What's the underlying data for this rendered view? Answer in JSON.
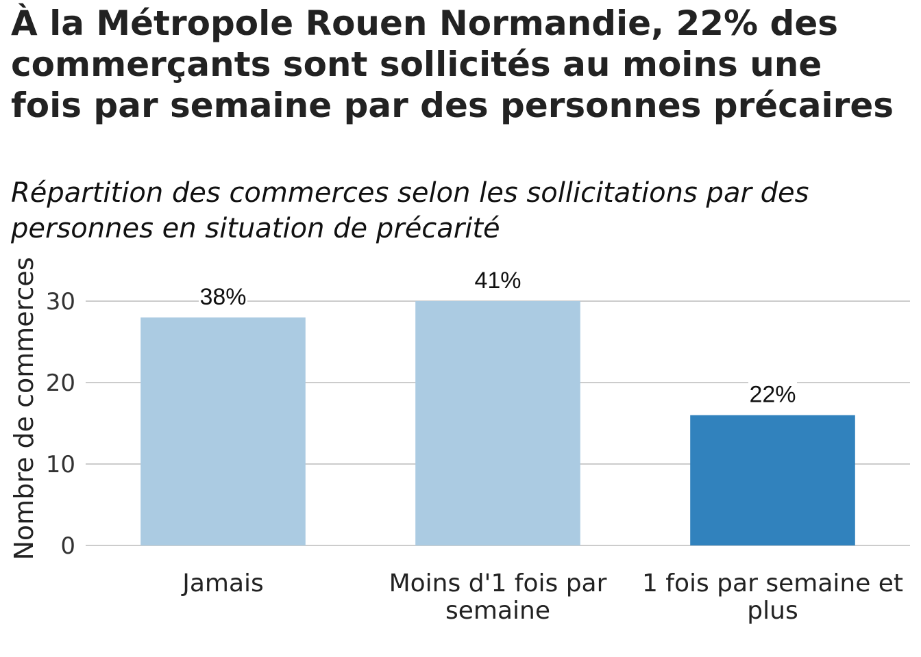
{
  "title": "À la Métropole Rouen Normandie, 22% des commerçants sont sollicités au moins une fois par semaine par des personnes précaires",
  "subtitle": "Répartition des commerces selon les sollicitations par des personnes en situation de précarité",
  "chart_data": {
    "type": "bar",
    "title": "À la Métropole Rouen Normandie, 22% des commerçants sont sollicités au moins une fois par semaine par des personnes précaires",
    "subtitle": "Répartition des commerces selon les sollicitations par des personnes en situation de précarité",
    "xlabel": "",
    "ylabel": "Nombre de commerces",
    "categories": [
      "Jamais",
      "Moins d'1 fois par semaine",
      "1 fois par semaine et plus"
    ],
    "category_label_lines": [
      [
        "Jamais"
      ],
      [
        "Moins d'1 fois par",
        "semaine"
      ],
      [
        "1 fois par semaine et",
        "plus"
      ]
    ],
    "values": [
      28,
      30,
      16
    ],
    "data_labels": [
      "38%",
      "41%",
      "22%"
    ],
    "bar_colors": [
      "#abcbe2",
      "#abcbe2",
      "#3182bd"
    ],
    "ylim": [
      0,
      33
    ],
    "yticks": [
      0,
      10,
      20,
      30
    ],
    "grid": true,
    "legend": "none"
  }
}
